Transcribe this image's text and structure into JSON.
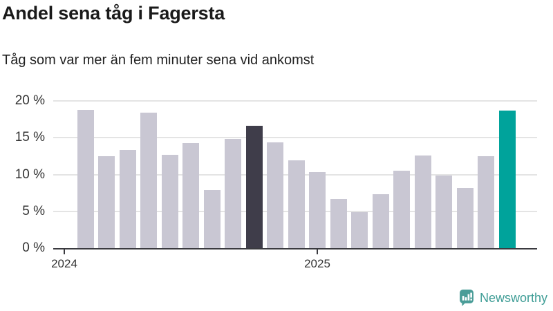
{
  "header": {
    "title": "Andel sena tåg i Fagersta",
    "subtitle": "Tåg som var mer än fem minuter sena vid ankomst"
  },
  "chart_data": {
    "type": "bar",
    "title": "Andel sena tåg i Fagersta",
    "subtitle": "Tåg som var mer än fem minuter sena vid ankomst",
    "unit": "%",
    "ylim": [
      0,
      20
    ],
    "grid": true,
    "legend": "none",
    "xlabel": "",
    "ylabel": "",
    "y_ticks": [
      {
        "value": 0,
        "label": "0 %"
      },
      {
        "value": 5,
        "label": "5 %"
      },
      {
        "value": 10,
        "label": "10 %"
      },
      {
        "value": 15,
        "label": "15 %"
      },
      {
        "value": 20,
        "label": "20 %"
      }
    ],
    "x_ticks": [
      {
        "label": "2024",
        "month_index": 0
      },
      {
        "label": "2025",
        "month_index": 12
      }
    ],
    "values": [
      18.8,
      12.5,
      13.3,
      18.4,
      12.7,
      14.3,
      7.9,
      14.8,
      16.6,
      14.4,
      11.9,
      10.3,
      6.7,
      4.9,
      7.3,
      10.5,
      12.6,
      9.9,
      8.2,
      12.5,
      18.7
    ],
    "highlight_dark_index": 8,
    "highlight_latest_index": 20,
    "colors": {
      "bar_default": "#c9c7d3",
      "bar_dark": "#3f3d4a",
      "bar_latest": "#00a39b",
      "gridline": "#e4e4e4",
      "axis": "#3a3a3f"
    }
  },
  "footer": {
    "brand": "Newsworthy",
    "brand_color": "#3f9d96",
    "logo_icon": "newsworthy-bar-chart-bubble-icon"
  }
}
